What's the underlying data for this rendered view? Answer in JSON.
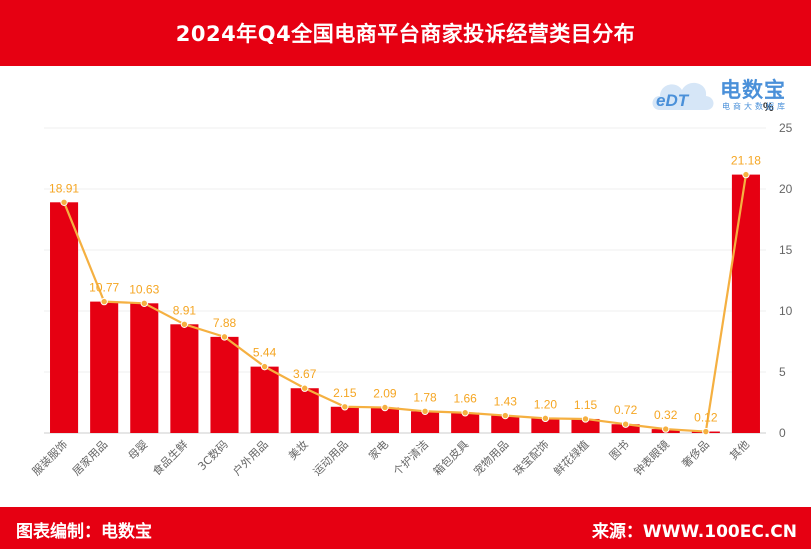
{
  "title": "2024年Q4全国电商平台商家投诉经营类目分布",
  "footer": {
    "left": "图表编制：电数宝",
    "right": "来源：WWW.100EC.CN"
  },
  "logo": {
    "text": "电数宝",
    "tagline": "电商大数据库",
    "mark": "eDT"
  },
  "colors": {
    "header": "#e60012",
    "bar": "#e60012",
    "line": "#f5b041",
    "label": "#f5a623",
    "logo": "#4a90d9"
  },
  "chart_data": {
    "type": "bar",
    "categories": [
      "服装服饰",
      "居家用品",
      "母婴",
      "食品生鲜",
      "3C数码",
      "户外用品",
      "美妆",
      "运动用品",
      "家电",
      "个护清洁",
      "箱包皮具",
      "宠物用品",
      "珠宝配饰",
      "鲜花绿植",
      "图书",
      "钟表眼镜",
      "奢侈品",
      "其他"
    ],
    "series": [
      {
        "type": "bar",
        "values": [
          18.91,
          10.77,
          10.63,
          8.91,
          7.88,
          5.44,
          3.67,
          2.15,
          2.09,
          1.78,
          1.66,
          1.43,
          1.2,
          1.15,
          0.72,
          0.32,
          0.12,
          21.18
        ]
      },
      {
        "type": "line",
        "values": [
          18.91,
          10.77,
          10.63,
          8.91,
          7.88,
          5.44,
          3.67,
          2.15,
          2.09,
          1.78,
          1.66,
          1.43,
          1.2,
          1.15,
          0.72,
          0.32,
          0.12,
          21.18
        ]
      }
    ],
    "data_labels": [
      "18.91",
      "10.77",
      "10.63",
      "8.91",
      "7.88",
      "5.44",
      "3.67",
      "2.15",
      "2.09",
      "1.78",
      "1.66",
      "1.43",
      "1.20",
      "1.15",
      "0.72",
      "0.32",
      "0.12",
      "21.18"
    ],
    "yunit": "%",
    "ylim": [
      0,
      25
    ],
    "yticks": [
      0,
      5,
      10,
      15,
      20,
      25
    ],
    "ytick_labels": [
      "0",
      "5",
      "10",
      "15",
      "20",
      "25"
    ],
    "y_axis_side": "right",
    "grid": true
  }
}
